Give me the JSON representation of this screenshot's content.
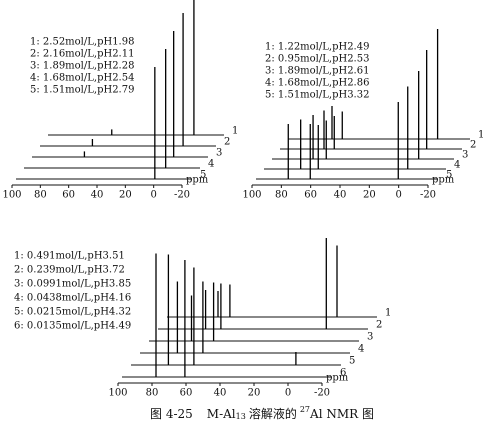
{
  "chart_data": [
    {
      "type": "nmr-stack",
      "xlabel": "ppm",
      "xlim": [
        100,
        -20
      ],
      "xticks": [
        100,
        80,
        60,
        40,
        20,
        0,
        -20
      ],
      "series": [
        {
          "name": "1: 2.52mol/L,pH1.98",
          "label": "1",
          "peaks": [
            {
              "x": -3,
              "height": 100
            },
            {
              "x": 55,
              "height": 4
            }
          ]
        },
        {
          "name": "2: 2.16mol/L,pH2.11",
          "label": "2",
          "peaks": [
            {
              "x": -1,
              "height": 95
            },
            {
              "x": 63,
              "height": 5
            }
          ]
        },
        {
          "name": "3: 1.89mol/L,pH2.28",
          "label": "3",
          "peaks": [
            {
              "x": 0,
              "height": 90
            },
            {
              "x": 63,
              "height": 4
            }
          ]
        },
        {
          "name": "4: 1.68mol/L,pH2.54",
          "label": "4",
          "peaks": [
            {
              "x": 0,
              "height": 85
            }
          ]
        },
        {
          "name": "5: 1.51mol/L,pH2.79",
          "label": "5",
          "peaks": [
            {
              "x": 2,
              "height": 80
            }
          ]
        }
      ]
    },
    {
      "type": "nmr-stack",
      "xlabel": "ppm",
      "xlim": [
        100,
        -20
      ],
      "xticks": [
        100,
        80,
        60,
        40,
        20,
        0,
        -20
      ],
      "series": [
        {
          "name": "1: 1.22mol/L,pH2.49",
          "label": "1",
          "peaks": [
            {
              "x": -2,
              "height": 100
            },
            {
              "x": 63,
              "height": 25
            },
            {
              "x": 70,
              "height": 30
            }
          ]
        },
        {
          "name": "2: 0.95mol/L,pH2.53",
          "label": "2",
          "peaks": [
            {
              "x": 0,
              "height": 90
            },
            {
              "x": 63,
              "height": 30
            },
            {
              "x": 70,
              "height": 35
            }
          ]
        },
        {
          "name": "3: 1.89mol/L,pH2.61",
          "label": "3",
          "peaks": [
            {
              "x": 0,
              "height": 80
            },
            {
              "x": 63,
              "height": 35
            },
            {
              "x": 72,
              "height": 40
            }
          ]
        },
        {
          "name": "4: 1.68mol/L,pH2.86",
          "label": "4",
          "peaks": [
            {
              "x": 2,
              "height": 75
            },
            {
              "x": 63,
              "height": 40
            },
            {
              "x": 75,
              "height": 45
            }
          ]
        },
        {
          "name": "5: 1.51mol/L,pH3.32",
          "label": "5",
          "peaks": [
            {
              "x": 3,
              "height": 70
            },
            {
              "x": 63,
              "height": 50
            },
            {
              "x": 78,
              "height": 50
            }
          ]
        }
      ]
    },
    {
      "type": "nmr-stack",
      "xlabel": "ppm",
      "xlim": [
        100,
        -20
      ],
      "xticks": [
        100,
        80,
        60,
        40,
        20,
        0,
        -20
      ],
      "series": [
        {
          "name": "1: 0.491mol/L,pH3.51",
          "label": "1",
          "peaks": [
            {
              "x": 0,
              "height": 55
            },
            {
              "x": 63,
              "height": 25
            },
            {
              "x": 70,
              "height": 20
            }
          ]
        },
        {
          "name": "2: 0.239mol/L,pH3.72",
          "label": "2",
          "peaks": [
            {
              "x": 1,
              "height": 70
            },
            {
              "x": 63,
              "height": 35
            },
            {
              "x": 72,
              "height": 30
            }
          ]
        },
        {
          "name": "3: 0.0991mol/L,pH3.85",
          "label": "3",
          "peaks": [
            {
              "x": 62,
              "height": 45
            },
            {
              "x": 75,
              "height": 35
            }
          ]
        },
        {
          "name": "4: 0.0438mol/L,pH4.16",
          "label": "4",
          "peaks": [
            {
              "x": 63,
              "height": 55
            },
            {
              "x": 78,
              "height": 55
            }
          ]
        },
        {
          "name": "5: 0.0215mol/L,pH4.32",
          "label": "5",
          "peaks": [
            {
              "x": 63,
              "height": 75
            },
            {
              "x": 78,
              "height": 85
            },
            {
              "x": 3,
              "height": 10
            }
          ]
        },
        {
          "name": "6: 0.0135mol/L,pH4.49",
          "label": "6",
          "peaks": [
            {
              "x": 63,
              "height": 90
            },
            {
              "x": 80,
              "height": 95
            }
          ]
        }
      ]
    }
  ],
  "caption": {
    "figure": "图 4-25",
    "compound": "M-Al",
    "subscript": "13",
    "middle": "溶解液的",
    "superscript": "27",
    "end": "Al NMR 图"
  }
}
